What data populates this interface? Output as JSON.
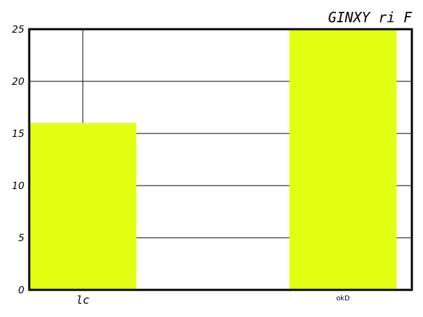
{
  "chart_data": {
    "type": "bar",
    "title": "GINXY ri F",
    "categories": [
      "lc",
      "okD"
    ],
    "values": [
      16,
      25
    ],
    "ylim": [
      0,
      25
    ],
    "yticks": [
      0,
      5,
      10,
      15,
      20,
      25
    ],
    "bar_color": "#e2ff12",
    "grid": true,
    "xlabel": "",
    "ylabel": ""
  }
}
